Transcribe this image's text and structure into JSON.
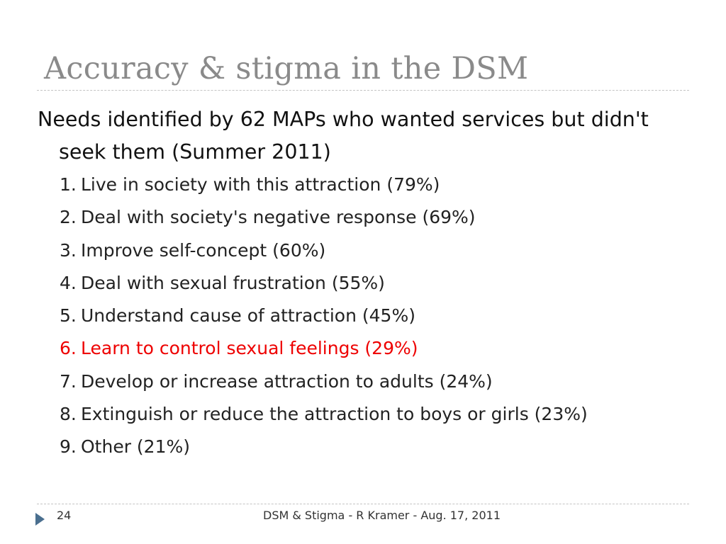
{
  "slide": {
    "title": "Accuracy & stigma in the DSM",
    "intro_line1": "Needs identified by 62 MAPs who wanted services but didn't",
    "intro_line2": "seek them (Summer 2011)",
    "items": [
      {
        "num": "1.",
        "text": "Live in society with this attraction (79%)"
      },
      {
        "num": "2.",
        "text": "Deal with society's negative response (69%)"
      },
      {
        "num": "3.",
        "text": "Improve self-concept (60%)"
      },
      {
        "num": "4.",
        "text": "Deal with sexual frustration (55%)"
      },
      {
        "num": "5.",
        "text": "Understand cause of attraction (45%)"
      },
      {
        "num": "6.",
        "text": "Learn to control sexual feelings (29%)",
        "highlight_color": "#ee0000"
      },
      {
        "num": "7.",
        "text": "Develop or increase attraction to adults (24%)"
      },
      {
        "num": "8.",
        "text": "Extinguish or reduce the attraction to boys or girls (23%)"
      },
      {
        "num": "9.",
        "text": "Other (21%)"
      }
    ]
  },
  "footer": {
    "bullet_icon": "triangle-right-icon",
    "page_number": "24",
    "caption": "DSM & Stigma - R Kramer - Aug. 17, 2011"
  }
}
